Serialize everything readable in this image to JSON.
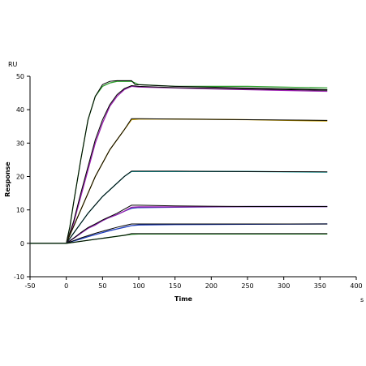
{
  "chart_data": {
    "type": "line",
    "title": "",
    "xlabel": "Time",
    "ylabel": "Response",
    "y_unit": "RU",
    "x_unit": "s",
    "xlim": [
      -50,
      400
    ],
    "ylim": [
      -10,
      50
    ],
    "x_ticks": [
      "-50",
      "0",
      "50",
      "100",
      "150",
      "200",
      "250",
      "300",
      "350",
      "400"
    ],
    "y_ticks": [
      "-10",
      "0",
      "10",
      "20",
      "30",
      "40",
      "50"
    ],
    "grid": false,
    "legend": "none",
    "series": [
      {
        "color": "#2ca02c",
        "points": [
          [
            -50,
            0
          ],
          [
            0,
            0
          ],
          [
            5,
            5
          ],
          [
            10,
            12
          ],
          [
            20,
            25
          ],
          [
            30,
            37
          ],
          [
            40,
            44
          ],
          [
            50,
            47
          ],
          [
            60,
            48
          ],
          [
            70,
            48.5
          ],
          [
            90,
            48.5
          ],
          [
            100,
            47.5
          ],
          [
            150,
            47
          ],
          [
            250,
            47
          ],
          [
            360,
            46.5
          ]
        ]
      },
      {
        "color": "#000000",
        "points": [
          [
            -50,
            0
          ],
          [
            0,
            0
          ],
          [
            5,
            5
          ],
          [
            10,
            12
          ],
          [
            20,
            25
          ],
          [
            30,
            37
          ],
          [
            40,
            44
          ],
          [
            50,
            47.5
          ],
          [
            60,
            48.5
          ],
          [
            70,
            48.7
          ],
          [
            90,
            48.7
          ],
          [
            95,
            47.5
          ],
          [
            150,
            47
          ],
          [
            250,
            46.5
          ],
          [
            360,
            46
          ]
        ]
      },
      {
        "color": "#9b1fb0",
        "points": [
          [
            -50,
            0
          ],
          [
            0,
            0
          ],
          [
            10,
            6
          ],
          [
            20,
            14
          ],
          [
            30,
            22
          ],
          [
            40,
            30
          ],
          [
            50,
            36
          ],
          [
            60,
            41
          ],
          [
            70,
            44
          ],
          [
            80,
            46
          ],
          [
            90,
            47
          ],
          [
            100,
            46.8
          ],
          [
            150,
            46.5
          ],
          [
            250,
            46
          ],
          [
            360,
            45.5
          ]
        ]
      },
      {
        "color": "#000000",
        "points": [
          [
            -50,
            0
          ],
          [
            0,
            0
          ],
          [
            10,
            6.5
          ],
          [
            20,
            15
          ],
          [
            30,
            23
          ],
          [
            40,
            31
          ],
          [
            50,
            37
          ],
          [
            60,
            41.5
          ],
          [
            70,
            44.5
          ],
          [
            80,
            46.3
          ],
          [
            90,
            47.2
          ],
          [
            100,
            47
          ],
          [
            150,
            46.6
          ],
          [
            250,
            46.2
          ],
          [
            360,
            45.8
          ]
        ]
      },
      {
        "color": "#c8a000",
        "points": [
          [
            -50,
            0
          ],
          [
            0,
            0
          ],
          [
            10,
            5
          ],
          [
            20,
            10
          ],
          [
            30,
            15
          ],
          [
            40,
            20
          ],
          [
            50,
            24
          ],
          [
            60,
            28
          ],
          [
            70,
            31
          ],
          [
            80,
            34
          ],
          [
            90,
            37
          ],
          [
            100,
            37.2
          ],
          [
            150,
            37.2
          ],
          [
            250,
            37
          ],
          [
            360,
            36.6
          ]
        ]
      },
      {
        "color": "#000000",
        "points": [
          [
            -50,
            0
          ],
          [
            0,
            0
          ],
          [
            10,
            5
          ],
          [
            20,
            10
          ],
          [
            30,
            15
          ],
          [
            40,
            20
          ],
          [
            50,
            24
          ],
          [
            60,
            28
          ],
          [
            70,
            31
          ],
          [
            80,
            34
          ],
          [
            90,
            37.3
          ],
          [
            100,
            37.3
          ],
          [
            150,
            37.2
          ],
          [
            250,
            37
          ],
          [
            360,
            36.8
          ]
        ]
      },
      {
        "color": "#17a6a6",
        "points": [
          [
            -50,
            0
          ],
          [
            0,
            0
          ],
          [
            10,
            3
          ],
          [
            20,
            6
          ],
          [
            30,
            9
          ],
          [
            40,
            11.5
          ],
          [
            50,
            14
          ],
          [
            60,
            16
          ],
          [
            70,
            18
          ],
          [
            80,
            20
          ],
          [
            90,
            21.5
          ],
          [
            150,
            21.5
          ],
          [
            250,
            21.5
          ],
          [
            360,
            21.3
          ]
        ]
      },
      {
        "color": "#000000",
        "points": [
          [
            -50,
            0
          ],
          [
            0,
            0
          ],
          [
            10,
            3
          ],
          [
            20,
            6
          ],
          [
            30,
            9
          ],
          [
            40,
            11.5
          ],
          [
            50,
            14
          ],
          [
            60,
            16
          ],
          [
            70,
            18
          ],
          [
            80,
            20
          ],
          [
            90,
            21.6
          ],
          [
            150,
            21.6
          ],
          [
            250,
            21.5
          ],
          [
            360,
            21.4
          ]
        ]
      },
      {
        "color": "#1f3fbf",
        "points": [
          [
            -50,
            0
          ],
          [
            0,
            0
          ],
          [
            10,
            1.5
          ],
          [
            20,
            3
          ],
          [
            30,
            4.5
          ],
          [
            40,
            5.5
          ],
          [
            50,
            6.8
          ],
          [
            60,
            7.8
          ],
          [
            70,
            8.6
          ],
          [
            80,
            9.6
          ],
          [
            90,
            10.5
          ],
          [
            100,
            10.7
          ],
          [
            150,
            10.8
          ],
          [
            250,
            11
          ],
          [
            360,
            11
          ]
        ]
      },
      {
        "color": "#9b1fb0",
        "points": [
          [
            -50,
            0
          ],
          [
            0,
            0
          ],
          [
            10,
            1.5
          ],
          [
            20,
            3
          ],
          [
            30,
            4.5
          ],
          [
            40,
            5.5
          ],
          [
            50,
            6.8
          ],
          [
            60,
            7.8
          ],
          [
            70,
            8.6
          ],
          [
            80,
            9.6
          ],
          [
            90,
            10.8
          ],
          [
            100,
            10.9
          ],
          [
            150,
            10.9
          ],
          [
            250,
            11
          ],
          [
            360,
            11
          ]
        ]
      },
      {
        "color": "#000000",
        "points": [
          [
            -50,
            0
          ],
          [
            0,
            0
          ],
          [
            10,
            1.5
          ],
          [
            20,
            3.2
          ],
          [
            30,
            4.7
          ],
          [
            40,
            5.8
          ],
          [
            50,
            7.0
          ],
          [
            60,
            8.0
          ],
          [
            70,
            9.0
          ],
          [
            80,
            10.2
          ],
          [
            90,
            11.4
          ],
          [
            100,
            11.4
          ],
          [
            150,
            11.2
          ],
          [
            250,
            11
          ],
          [
            360,
            11
          ]
        ]
      },
      {
        "color": "#1f3fbf",
        "points": [
          [
            -50,
            0
          ],
          [
            0,
            0
          ],
          [
            10,
            0.7
          ],
          [
            20,
            1.3
          ],
          [
            30,
            2
          ],
          [
            40,
            2.6
          ],
          [
            50,
            3.2
          ],
          [
            60,
            3.8
          ],
          [
            70,
            4.3
          ],
          [
            80,
            4.8
          ],
          [
            90,
            5.3
          ],
          [
            100,
            5.5
          ],
          [
            150,
            5.6
          ],
          [
            250,
            5.7
          ],
          [
            360,
            5.8
          ]
        ]
      },
      {
        "color": "#000000",
        "points": [
          [
            -50,
            0
          ],
          [
            0,
            0
          ],
          [
            10,
            0.8
          ],
          [
            20,
            1.6
          ],
          [
            30,
            2.3
          ],
          [
            40,
            3.0
          ],
          [
            50,
            3.6
          ],
          [
            60,
            4.2
          ],
          [
            70,
            4.8
          ],
          [
            80,
            5.3
          ],
          [
            90,
            5.8
          ],
          [
            100,
            5.8
          ],
          [
            150,
            5.8
          ],
          [
            250,
            5.8
          ],
          [
            360,
            5.8
          ]
        ]
      },
      {
        "color": "#2ca02c",
        "points": [
          [
            -50,
            0
          ],
          [
            0,
            0
          ],
          [
            10,
            0.3
          ],
          [
            20,
            0.6
          ],
          [
            30,
            0.9
          ],
          [
            40,
            1.2
          ],
          [
            50,
            1.5
          ],
          [
            60,
            1.8
          ],
          [
            70,
            2.1
          ],
          [
            80,
            2.4
          ],
          [
            90,
            2.7
          ],
          [
            100,
            2.8
          ],
          [
            150,
            2.8
          ],
          [
            250,
            2.8
          ],
          [
            360,
            2.8
          ]
        ]
      },
      {
        "color": "#000000",
        "points": [
          [
            -50,
            0
          ],
          [
            0,
            0
          ],
          [
            10,
            0.3
          ],
          [
            20,
            0.6
          ],
          [
            30,
            0.9
          ],
          [
            40,
            1.2
          ],
          [
            50,
            1.5
          ],
          [
            60,
            1.8
          ],
          [
            70,
            2.1
          ],
          [
            80,
            2.4
          ],
          [
            90,
            2.9
          ],
          [
            100,
            2.9
          ],
          [
            150,
            2.9
          ],
          [
            250,
            2.9
          ],
          [
            360,
            2.9
          ]
        ]
      }
    ]
  }
}
